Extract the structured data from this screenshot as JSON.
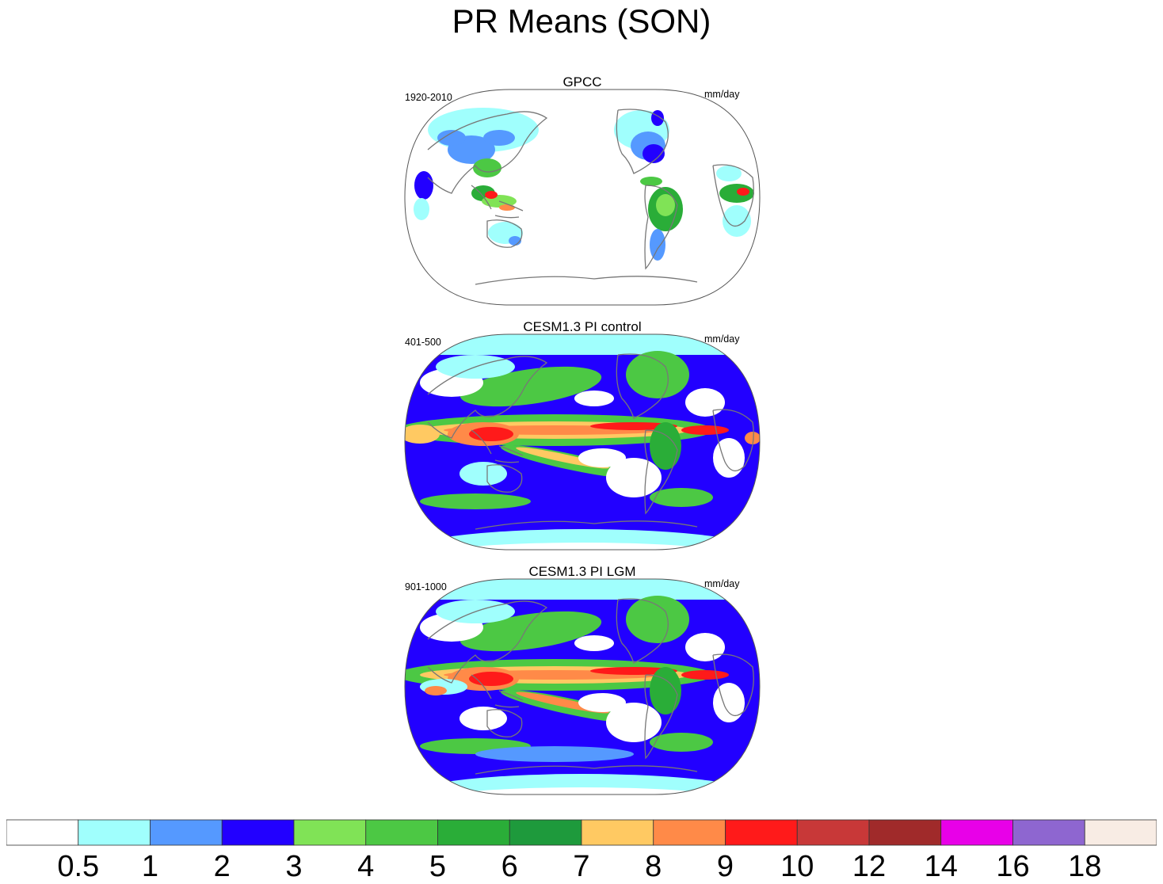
{
  "title": "PR Means (SON)",
  "panels": [
    {
      "title": "GPCC",
      "left_label": "1920-2010",
      "right_label": "mm/day",
      "kind": "obs"
    },
    {
      "title": "CESM1.3 PI control",
      "left_label": "401-500",
      "right_label": "mm/day",
      "kind": "ctrl"
    },
    {
      "title": "CESM1.3 PI LGM",
      "left_label": "901-1000",
      "right_label": "mm/day",
      "kind": "lgm"
    }
  ],
  "colorbar": {
    "labels": [
      "0.5",
      "1",
      "2",
      "3",
      "4",
      "5",
      "6",
      "7",
      "8",
      "9",
      "10",
      "12",
      "14",
      "16",
      "18"
    ],
    "colors": [
      "#ffffff",
      "#a0fffd",
      "#5599ff",
      "#2200ff",
      "#80e356",
      "#4cc844",
      "#2aad38",
      "#1e9a3c",
      "#ffc962",
      "#ff8a48",
      "#ff1a1a",
      "#c83838",
      "#a02a2a",
      "#e800e8",
      "#8e66d0",
      "#f8ece4"
    ]
  }
}
